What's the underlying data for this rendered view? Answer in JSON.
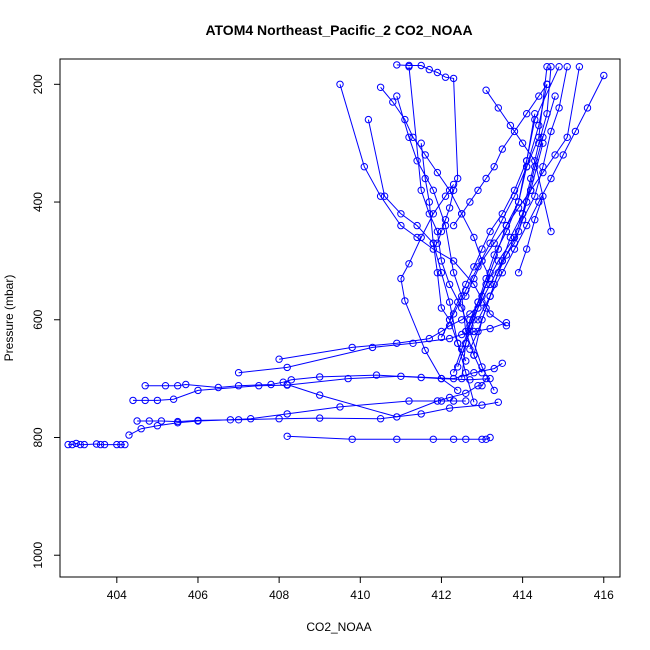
{
  "chart_data": {
    "type": "line",
    "title": "ATOM4 Northeast_Pacific_2 CO2_NOAA",
    "xlabel": "CO2_NOAA",
    "ylabel": "Pressure (mbar)",
    "xlim": [
      402.6,
      416.4
    ],
    "ylim": [
      1037,
      157
    ],
    "y_reversed": true,
    "x_ticks": [
      404,
      406,
      408,
      410,
      412,
      414,
      416
    ],
    "y_ticks": [
      200,
      400,
      600,
      800,
      1000
    ],
    "grid": false,
    "legend": "none",
    "color": "#0000ff",
    "series": [
      {
        "x": [
          402.8,
          402.9,
          403.0,
          403.1,
          403.2,
          403.5,
          403.6,
          403.7,
          404.0,
          404.1,
          404.2
        ],
        "y": [
          812,
          812,
          810,
          812,
          812,
          811,
          812,
          812,
          812,
          812,
          812
        ]
      },
      {
        "x": [
          404.3,
          404.6,
          405.0,
          405.5,
          406.0,
          406.8,
          407.3,
          408.2,
          409.5,
          411.2,
          412.0,
          412.3,
          412.6
        ],
        "y": [
          796,
          785,
          780,
          775,
          772,
          770,
          768,
          760,
          748,
          738,
          738,
          738,
          738
        ]
      },
      {
        "x": [
          404.7,
          405.2,
          405.5,
          405.7,
          406.5,
          407.0,
          407.8,
          408.1,
          408.3,
          409.0,
          410.4,
          411.5,
          412.0,
          412.7,
          413.2
        ],
        "y": [
          712,
          712,
          712,
          710,
          715,
          712,
          710,
          706,
          702,
          697,
          694,
          698,
          700,
          702,
          700
        ]
      },
      {
        "x": [
          404.4,
          404.7,
          405.0,
          405.4,
          406.0,
          407.5,
          408.2,
          409.7,
          411.0,
          412.3,
          412.8,
          413.3,
          413.5
        ],
        "y": [
          737,
          737,
          737,
          735,
          720,
          712,
          711,
          700,
          696,
          700,
          690,
          683,
          674
        ]
      },
      {
        "x": [
          404.5,
          404.8,
          405.1,
          405.5,
          406.0,
          407.0,
          408.0,
          409.0,
          410.5,
          411.5,
          412.2,
          413.0,
          413.4
        ],
        "y": [
          772,
          772,
          772,
          773,
          771,
          770,
          768,
          767,
          768,
          760,
          750,
          745,
          740
        ]
      },
      {
        "x": [
          408.2,
          409.8,
          410.9,
          411.8,
          412.3,
          412.6,
          413.0,
          413.1,
          413.2
        ],
        "y": [
          798,
          803,
          803,
          803,
          803,
          803,
          803,
          803,
          800
        ]
      },
      {
        "x": [
          408.2,
          409.0,
          410.9,
          411.9,
          412.2,
          412.6,
          412.9,
          413.0,
          413.1
        ],
        "y": [
          710,
          728,
          765,
          738,
          732,
          725,
          712,
          712,
          700
        ]
      },
      {
        "x": [
          407.0,
          408.2,
          410.3,
          411.3,
          412.2,
          412.5,
          412.8,
          413.2,
          413.6
        ],
        "y": [
          690,
          681,
          647,
          640,
          632,
          625,
          620,
          615,
          605
        ]
      },
      {
        "x": [
          408.0,
          409.8,
          410.9,
          411.7,
          412.0,
          412.2,
          412.5,
          412.7,
          413.0
        ],
        "y": [
          667,
          647,
          640,
          632,
          620,
          610,
          600,
          590,
          570
        ]
      },
      {
        "x": [
          412.4,
          412.0,
          411.6,
          411.1,
          411.0,
          411.2,
          411.5,
          411.8,
          412.1,
          412.3
        ],
        "y": [
          720,
          700,
          652,
          568,
          530,
          505,
          460,
          420,
          390,
          370
        ]
      },
      {
        "x": [
          412.6,
          412.4,
          412.2,
          412.0,
          411.9,
          411.8,
          411.7,
          411.6,
          411.5
        ],
        "y": [
          670,
          640,
          600,
          580,
          520,
          470,
          400,
          360,
          300
        ]
      },
      {
        "x": [
          413.0,
          412.8,
          412.6,
          412.5,
          412.3,
          412.1,
          411.8,
          411.4,
          411.2,
          410.9
        ],
        "y": [
          690,
          660,
          620,
          560,
          520,
          440,
          380,
          330,
          290,
          220
        ]
      },
      {
        "x": [
          412.8,
          412.6,
          412.4,
          412.2,
          412.0,
          411.8,
          411.4,
          411.0,
          410.6,
          410.2
        ],
        "y": [
          740,
          690,
          640,
          570,
          520,
          470,
          440,
          420,
          390,
          260
        ]
      },
      {
        "x": [
          413.6,
          413.2,
          412.8,
          412.3,
          411.8,
          411.4,
          411.0,
          410.5,
          410.1,
          409.5
        ],
        "y": [
          610,
          590,
          540,
          500,
          480,
          460,
          440,
          390,
          340,
          200
        ]
      },
      {
        "x": [
          413.3,
          413.0,
          412.7,
          412.5,
          412.2,
          412.0,
          411.9,
          411.7,
          411.5,
          411.2
        ],
        "y": [
          720,
          680,
          620,
          580,
          540,
          500,
          450,
          420,
          380,
          170
        ]
      },
      {
        "x": [
          412.5,
          412.6,
          412.7,
          412.9,
          413.1,
          413.4,
          413.8,
          414.0,
          414.2,
          414.5
        ],
        "y": [
          700,
          640,
          600,
          570,
          540,
          500,
          460,
          420,
          380,
          300
        ]
      },
      {
        "x": [
          412.8,
          413.0,
          413.2,
          413.4,
          413.6,
          413.9,
          414.1,
          414.3,
          414.5,
          414.8
        ],
        "y": [
          660,
          600,
          560,
          520,
          490,
          450,
          400,
          340,
          290,
          220
        ]
      },
      {
        "x": [
          412.7,
          412.9,
          413.1,
          413.3,
          413.5,
          413.7,
          414.0,
          414.2,
          414.4,
          414.6,
          414.7
        ],
        "y": [
          650,
          620,
          580,
          540,
          500,
          460,
          420,
          360,
          300,
          250,
          170
        ]
      },
      {
        "x": [
          412.4,
          412.6,
          412.8,
          413.0,
          413.2,
          413.4,
          413.6,
          413.9,
          414.1,
          414.4,
          414.6
        ],
        "y": [
          680,
          640,
          600,
          560,
          520,
          480,
          440,
          400,
          340,
          270,
          200
        ]
      },
      {
        "x": [
          412.2,
          412.4,
          412.6,
          412.8,
          413.0,
          413.2,
          413.5,
          413.8,
          414.1,
          414.3,
          414.9
        ],
        "y": [
          600,
          570,
          540,
          510,
          480,
          450,
          420,
          380,
          330,
          260,
          170
        ]
      },
      {
        "x": [
          412.6,
          412.9,
          413.2,
          413.5,
          413.8,
          414.0,
          414.3,
          414.5,
          414.7,
          414.9,
          415.1
        ],
        "y": [
          620,
          580,
          540,
          500,
          470,
          430,
          390,
          340,
          280,
          240,
          170
        ]
      },
      {
        "x": [
          412.0,
          412.3,
          412.6,
          412.9,
          413.2,
          413.5,
          413.8,
          414.1,
          414.4,
          414.6
        ],
        "y": [
          630,
          590,
          550,
          510,
          470,
          430,
          390,
          340,
          290,
          170
        ]
      },
      {
        "x": [
          412.3,
          412.5,
          412.7,
          412.9,
          413.1,
          413.3,
          413.6,
          413.9,
          414.1,
          414.3
        ],
        "y": [
          690,
          650,
          610,
          570,
          530,
          490,
          450,
          400,
          330,
          250
        ]
      },
      {
        "x": [
          412.9,
          413.2,
          413.5,
          413.8,
          414.1,
          414.4,
          414.7,
          415.0,
          415.3,
          415.6,
          416.0
        ],
        "y": [
          600,
          560,
          520,
          480,
          440,
          400,
          360,
          320,
          280,
          240,
          185
        ]
      },
      {
        "x": [
          413.9,
          414.1,
          414.3,
          414.5,
          414.7,
          414.3,
          414.0,
          413.7,
          413.4,
          413.1
        ],
        "y": [
          520,
          480,
          430,
          390,
          450,
          330,
          300,
          270,
          240,
          210
        ]
      },
      {
        "x": [
          412.3,
          412.5,
          412.7,
          412.9,
          413.1,
          413.3,
          413.5,
          413.8,
          414.1,
          414.4,
          414.6
        ],
        "y": [
          440,
          420,
          400,
          380,
          360,
          340,
          310,
          280,
          250,
          220,
          200
        ]
      },
      {
        "x": [
          410.9,
          411.2,
          411.5,
          411.7,
          411.9,
          412.1,
          412.3,
          412.4,
          412.3,
          412.2,
          412.1,
          412.0,
          411.9
        ],
        "y": [
          167,
          168,
          168,
          175,
          180,
          188,
          190,
          360,
          380,
          410,
          430,
          450,
          470
        ]
      },
      {
        "x": [
          410.5,
          410.8,
          411.1,
          411.3,
          411.6,
          411.9,
          412.2,
          412.5,
          412.8,
          413.0,
          413.2
        ],
        "y": [
          205,
          230,
          260,
          290,
          320,
          350,
          380,
          420,
          460,
          500,
          530
        ]
      },
      {
        "x": [
          412.6,
          412.8,
          413.0,
          413.3,
          413.6,
          413.9,
          414.2,
          414.5,
          414.8,
          415.1,
          415.4
        ],
        "y": [
          560,
          530,
          500,
          470,
          440,
          410,
          380,
          350,
          320,
          290,
          170
        ]
      }
    ]
  }
}
